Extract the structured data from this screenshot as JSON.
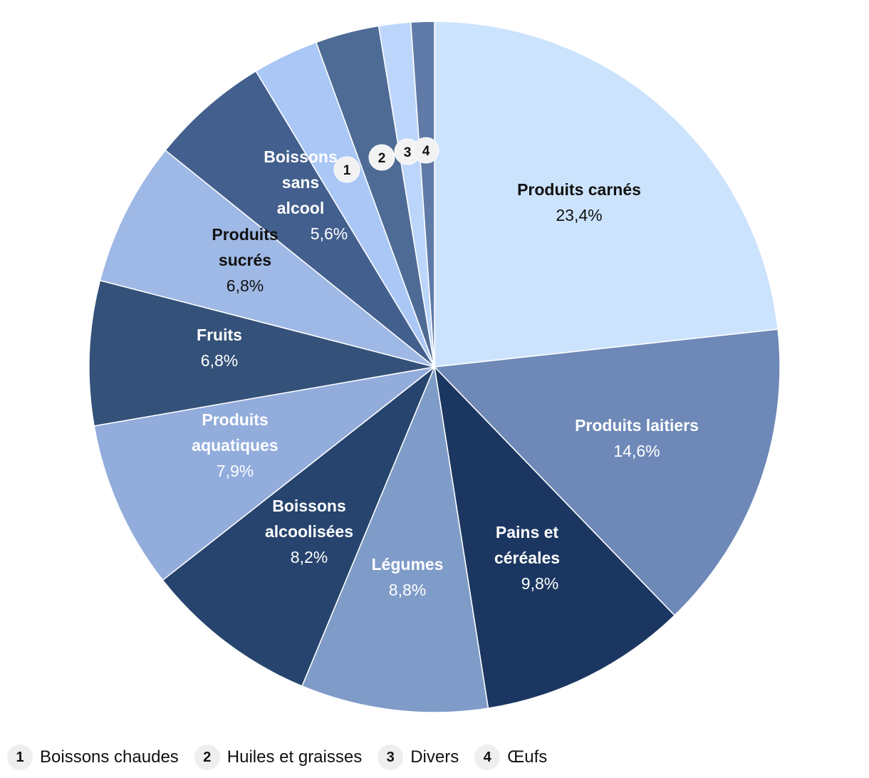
{
  "chart_data": {
    "type": "pie",
    "categories": [
      "Produits carnés",
      "Produits laitiers",
      "Pains et céréales",
      "Légumes",
      "Boissons alcoolisées",
      "Produits aquatiques",
      "Fruits",
      "Produits sucrés",
      "Boissons sans alcool",
      "Boissons chaudes",
      "Huiles et graisses",
      "Divers",
      "Œufs"
    ],
    "values": [
      23.4,
      14.6,
      9.8,
      8.8,
      8.2,
      7.9,
      6.8,
      6.8,
      5.6,
      3.1,
      3.0,
      1.5,
      1.1
    ],
    "slice_labels": [
      {
        "name": "Produits carnés",
        "value": "23,4%",
        "color": "#cce3fd",
        "text": "dark"
      },
      {
        "name": "Produits laitiers",
        "value": "14,6%",
        "color": "#6e89b7",
        "text": "light"
      },
      {
        "name": "Pains et céréales",
        "value": "9,8%",
        "color": "#1b3761",
        "text": "light"
      },
      {
        "name": "Légumes",
        "value": "8,8%",
        "color": "#7f9bc8",
        "text": "light"
      },
      {
        "name": "Boissons alcoolisées",
        "value": "8,2%",
        "color": "#26446d",
        "text": "light"
      },
      {
        "name": "Produits aquatiques",
        "value": "7,9%",
        "color": "#92acdc",
        "text": "light"
      },
      {
        "name": "Fruits",
        "value": "6,8%",
        "color": "#345179",
        "text": "light"
      },
      {
        "name": "Produits sucrés",
        "value": "6,8%",
        "color": "#9fb9e6",
        "text": "dark"
      },
      {
        "name": "Boissons sans alcool",
        "value": "5,6%",
        "color": "#435f8d",
        "text": "light"
      },
      {
        "name": "1",
        "value": "",
        "color": "#aac7f5",
        "text": "badge"
      },
      {
        "name": "2",
        "value": "",
        "color": "#4e6b96",
        "text": "badge"
      },
      {
        "name": "3",
        "value": "",
        "color": "#bcd6fb",
        "text": "badge"
      },
      {
        "name": "4",
        "value": "",
        "color": "#607aa7",
        "text": "badge"
      }
    ]
  },
  "legend": [
    {
      "badge": "1",
      "label": "Boissons chaudes"
    },
    {
      "badge": "2",
      "label": "Huiles et graisses"
    },
    {
      "badge": "3",
      "label": "Divers"
    },
    {
      "badge": "4",
      "label": "Œufs"
    }
  ]
}
